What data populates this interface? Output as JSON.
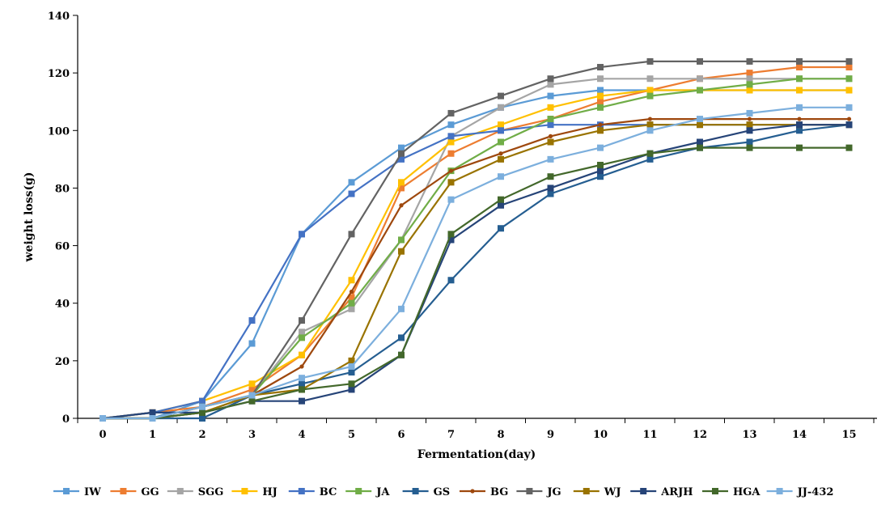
{
  "chart_data": {
    "type": "line",
    "title": "",
    "xlabel": "Fermentation(day)",
    "ylabel": "weight loss(g)",
    "x": [
      0,
      1,
      2,
      3,
      4,
      5,
      6,
      7,
      8,
      9,
      10,
      11,
      12,
      13,
      14,
      15
    ],
    "x_tick_labels": [
      "0",
      "1",
      "2",
      "3",
      "4",
      "5",
      "6",
      "7",
      "8",
      "9",
      "10",
      "11",
      "12",
      "13",
      "14",
      "15"
    ],
    "ylim": [
      0,
      140
    ],
    "y_ticks": [
      0,
      20,
      40,
      60,
      80,
      100,
      120,
      140
    ],
    "y_tick_labels": [
      "0",
      "20",
      "40",
      "60",
      "80",
      "100",
      "120",
      "140"
    ],
    "grid": false,
    "legend_position": "bottom",
    "series": [
      {
        "name": "IW",
        "color": "#5b9bd5",
        "marker": "square",
        "values": [
          0,
          0,
          6,
          26,
          64,
          82,
          94,
          102,
          108,
          112,
          114,
          114,
          114,
          114,
          114,
          114
        ]
      },
      {
        "name": "GG",
        "color": "#ed7d31",
        "marker": "square",
        "values": [
          0,
          2,
          4,
          10,
          22,
          42,
          80,
          92,
          100,
          104,
          110,
          114,
          118,
          120,
          122,
          122
        ]
      },
      {
        "name": "SGG",
        "color": "#a5a5a5",
        "marker": "square",
        "values": [
          0,
          0,
          4,
          8,
          30,
          38,
          62,
          98,
          108,
          116,
          118,
          118,
          118,
          118,
          118,
          118
        ]
      },
      {
        "name": "HJ",
        "color": "#ffc000",
        "marker": "square",
        "values": [
          0,
          2,
          6,
          12,
          22,
          48,
          82,
          96,
          102,
          108,
          112,
          114,
          114,
          114,
          114,
          114
        ]
      },
      {
        "name": "BC",
        "color": "#4472c4",
        "marker": "square",
        "values": [
          0,
          2,
          6,
          34,
          64,
          78,
          90,
          98,
          100,
          102,
          102,
          102,
          102,
          102,
          102,
          102
        ]
      },
      {
        "name": "JA",
        "color": "#70ad47",
        "marker": "square",
        "values": [
          0,
          0,
          4,
          8,
          28,
          40,
          62,
          86,
          96,
          104,
          108,
          112,
          114,
          116,
          118,
          118
        ]
      },
      {
        "name": "GS",
        "color": "#255e91",
        "marker": "square",
        "values": [
          0,
          0,
          0,
          8,
          12,
          16,
          28,
          48,
          66,
          78,
          84,
          90,
          94,
          96,
          100,
          102
        ]
      },
      {
        "name": "BG",
        "color": "#9e480e",
        "marker": "circle",
        "values": [
          0,
          0,
          2,
          8,
          18,
          44,
          74,
          86,
          92,
          98,
          102,
          104,
          104,
          104,
          104,
          104
        ]
      },
      {
        "name": "JG",
        "color": "#636363",
        "marker": "square",
        "values": [
          0,
          0,
          4,
          8,
          34,
          64,
          92,
          106,
          112,
          118,
          122,
          124,
          124,
          124,
          124,
          124
        ]
      },
      {
        "name": "WJ",
        "color": "#997300",
        "marker": "square",
        "values": [
          0,
          0,
          2,
          8,
          10,
          20,
          58,
          82,
          90,
          96,
          100,
          102,
          102,
          102,
          102,
          102
        ]
      },
      {
        "name": "ARJH",
        "color": "#264478",
        "marker": "square",
        "values": [
          0,
          2,
          2,
          6,
          6,
          10,
          22,
          62,
          74,
          80,
          86,
          92,
          96,
          100,
          102,
          102
        ]
      },
      {
        "name": "HGA",
        "color": "#43682b",
        "marker": "square",
        "values": [
          0,
          0,
          2,
          6,
          10,
          12,
          22,
          64,
          76,
          84,
          88,
          92,
          94,
          94,
          94,
          94
        ]
      },
      {
        "name": "JJ-432",
        "color": "#7cafdd",
        "marker": "square",
        "values": [
          0,
          0,
          4,
          8,
          14,
          18,
          38,
          76,
          84,
          90,
          94,
          100,
          104,
          106,
          108,
          108
        ]
      }
    ]
  }
}
